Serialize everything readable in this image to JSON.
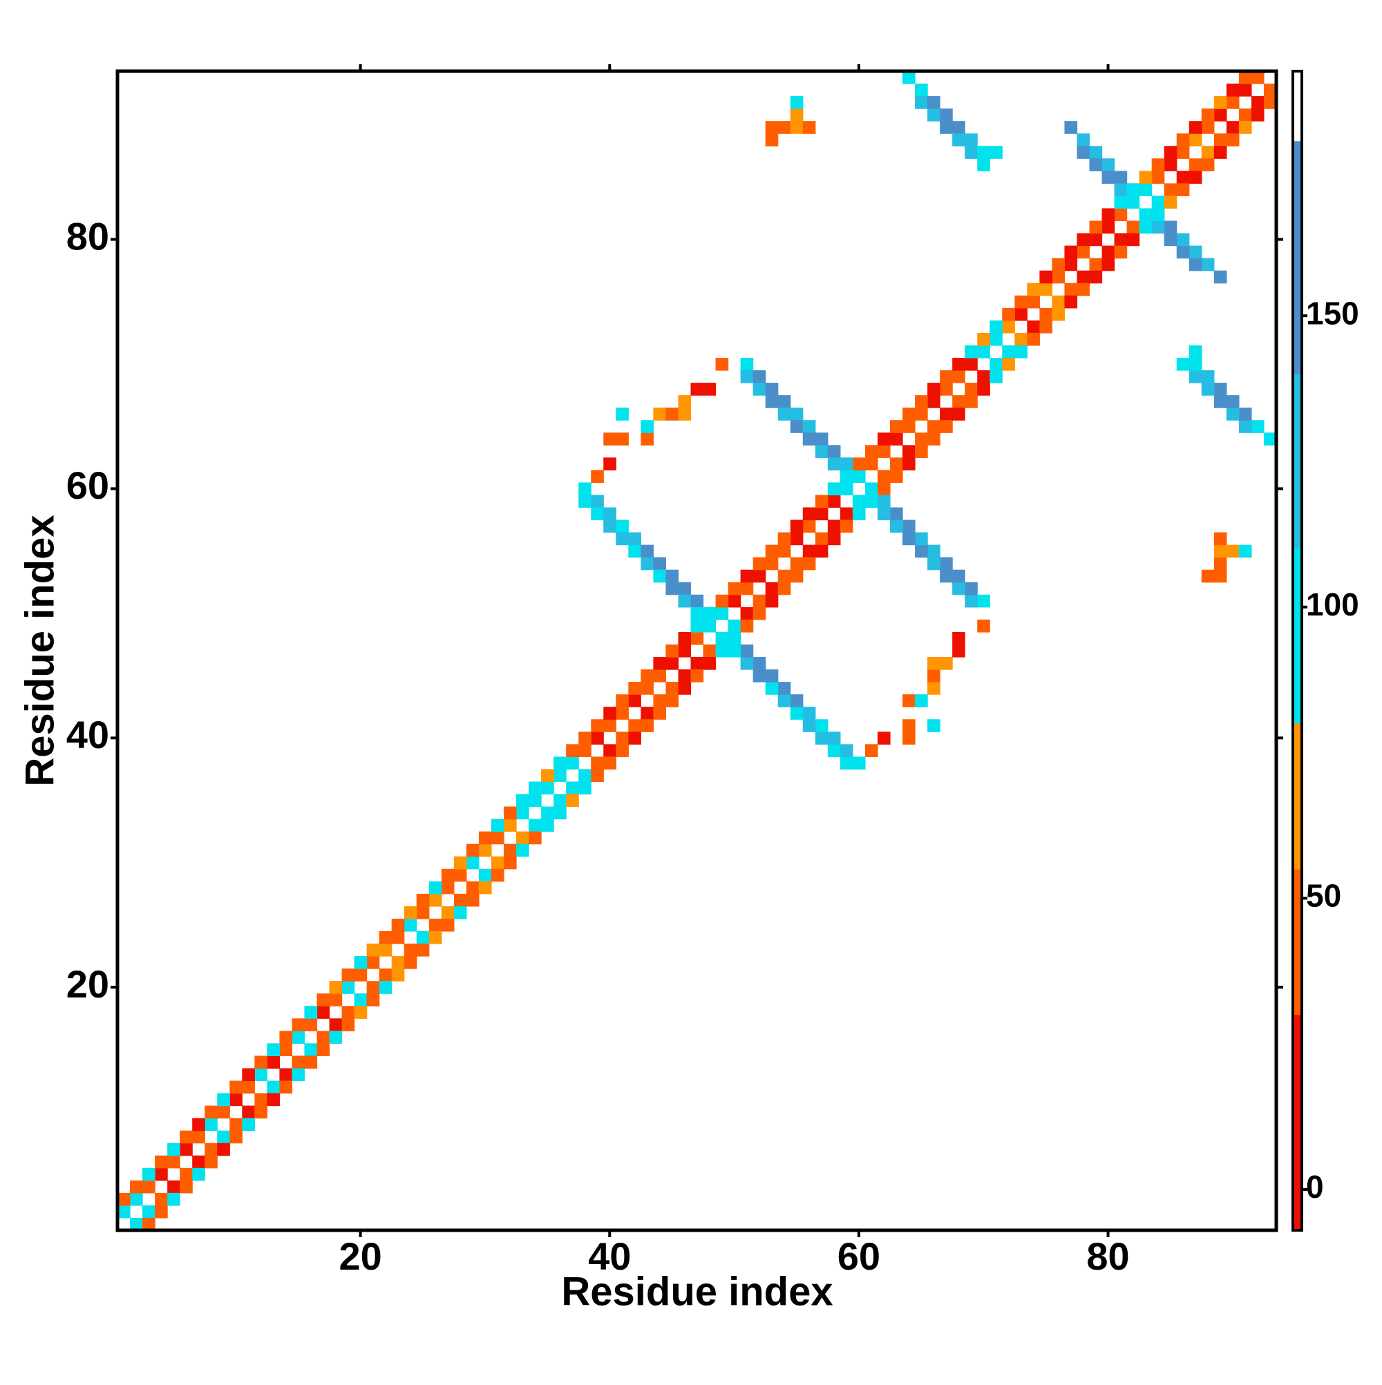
{
  "chart_data": {
    "type": "heatmap",
    "xlabel": "Residue index",
    "ylabel": "Residue index",
    "xlim": [
      0.5,
      93.5
    ],
    "ylim": [
      0.5,
      93.5
    ],
    "xticks": [
      20,
      40,
      60,
      80
    ],
    "yticks": [
      20,
      40,
      60,
      80
    ],
    "symmetric": true,
    "colorbar": {
      "lim": [
        -7,
        192
      ],
      "ticks": [
        0,
        50,
        100,
        150
      ],
      "bins": [
        [
          -7,
          30,
          "#ee1100"
        ],
        [
          30,
          55,
          "#ff5e00"
        ],
        [
          55,
          80,
          "#ff9500"
        ],
        [
          80,
          110,
          "#00e2ee"
        ],
        [
          110,
          140,
          "#26bde2"
        ],
        [
          140,
          180,
          "#4a8fc9"
        ],
        [
          180,
          192,
          "#ffffff"
        ]
      ]
    },
    "cells": [
      [
        1,
        2,
        92
      ],
      [
        2,
        3,
        92
      ],
      [
        3,
        4,
        40
      ],
      [
        4,
        5,
        10
      ],
      [
        5,
        6,
        40
      ],
      [
        6,
        7,
        10
      ],
      [
        7,
        8,
        40
      ],
      [
        8,
        9,
        92
      ],
      [
        9,
        10,
        40
      ],
      [
        10,
        11,
        10
      ],
      [
        11,
        12,
        40
      ],
      [
        12,
        13,
        92
      ],
      [
        13,
        14,
        10
      ],
      [
        14,
        15,
        40
      ],
      [
        15,
        16,
        92
      ],
      [
        16,
        17,
        40
      ],
      [
        17,
        18,
        10
      ],
      [
        18,
        19,
        40
      ],
      [
        19,
        20,
        92
      ],
      [
        20,
        21,
        40
      ],
      [
        21,
        22,
        40
      ],
      [
        22,
        23,
        65
      ],
      [
        23,
        24,
        40
      ],
      [
        24,
        25,
        92
      ],
      [
        25,
        26,
        40
      ],
      [
        26,
        27,
        65
      ],
      [
        27,
        28,
        40
      ],
      [
        28,
        29,
        40
      ],
      [
        29,
        30,
        92
      ],
      [
        30,
        31,
        65
      ],
      [
        31,
        32,
        40
      ],
      [
        32,
        33,
        65
      ],
      [
        33,
        34,
        92
      ],
      [
        34,
        35,
        92
      ],
      [
        35,
        36,
        92
      ],
      [
        36,
        37,
        92
      ],
      [
        37,
        38,
        92
      ],
      [
        38,
        39,
        40
      ],
      [
        39,
        40,
        10
      ],
      [
        40,
        41,
        40
      ],
      [
        41,
        42,
        40
      ],
      [
        42,
        43,
        10
      ],
      [
        43,
        44,
        40
      ],
      [
        44,
        45,
        40
      ],
      [
        45,
        46,
        10
      ],
      [
        46,
        47,
        10
      ],
      [
        47,
        48,
        40
      ],
      [
        48,
        49,
        92
      ],
      [
        49,
        50,
        92
      ],
      [
        50,
        51,
        10
      ],
      [
        51,
        52,
        40
      ],
      [
        52,
        53,
        10
      ],
      [
        53,
        54,
        40
      ],
      [
        54,
        55,
        40
      ],
      [
        55,
        56,
        10
      ],
      [
        56,
        57,
        40
      ],
      [
        57,
        58,
        10
      ],
      [
        58,
        59,
        10
      ],
      [
        59,
        60,
        92
      ],
      [
        60,
        61,
        92
      ],
      [
        61,
        62,
        40
      ],
      [
        62,
        63,
        40
      ],
      [
        63,
        64,
        10
      ],
      [
        64,
        65,
        40
      ],
      [
        65,
        66,
        40
      ],
      [
        66,
        67,
        10
      ],
      [
        67,
        68,
        40
      ],
      [
        68,
        69,
        40
      ],
      [
        69,
        70,
        10
      ],
      [
        70,
        71,
        92
      ],
      [
        71,
        72,
        92
      ],
      [
        72,
        73,
        65
      ],
      [
        73,
        74,
        10
      ],
      [
        74,
        75,
        40
      ],
      [
        75,
        76,
        65
      ],
      [
        76,
        77,
        40
      ],
      [
        77,
        78,
        10
      ],
      [
        78,
        79,
        40
      ],
      [
        79,
        80,
        10
      ],
      [
        80,
        81,
        10
      ],
      [
        81,
        82,
        40
      ],
      [
        82,
        83,
        92
      ],
      [
        83,
        84,
        92
      ],
      [
        84,
        85,
        40
      ],
      [
        85,
        86,
        10
      ],
      [
        86,
        87,
        40
      ],
      [
        87,
        88,
        65
      ],
      [
        88,
        89,
        40
      ],
      [
        89,
        90,
        10
      ],
      [
        90,
        91,
        40
      ],
      [
        91,
        92,
        10
      ],
      [
        92,
        93,
        40
      ],
      [
        1,
        3,
        40
      ],
      [
        2,
        4,
        40
      ],
      [
        3,
        5,
        92
      ],
      [
        4,
        6,
        40
      ],
      [
        5,
        7,
        92
      ],
      [
        6,
        8,
        40
      ],
      [
        7,
        9,
        10
      ],
      [
        8,
        10,
        40
      ],
      [
        9,
        11,
        92
      ],
      [
        10,
        12,
        40
      ],
      [
        11,
        13,
        10
      ],
      [
        12,
        14,
        40
      ],
      [
        13,
        15,
        92
      ],
      [
        14,
        16,
        40
      ],
      [
        15,
        17,
        40
      ],
      [
        16,
        18,
        92
      ],
      [
        17,
        19,
        40
      ],
      [
        18,
        20,
        65
      ],
      [
        19,
        21,
        40
      ],
      [
        20,
        22,
        92
      ],
      [
        21,
        23,
        65
      ],
      [
        22,
        24,
        40
      ],
      [
        23,
        25,
        40
      ],
      [
        24,
        26,
        65
      ],
      [
        25,
        27,
        40
      ],
      [
        26,
        28,
        92
      ],
      [
        27,
        29,
        40
      ],
      [
        28,
        30,
        65
      ],
      [
        29,
        31,
        40
      ],
      [
        30,
        32,
        40
      ],
      [
        31,
        33,
        92
      ],
      [
        32,
        34,
        40
      ],
      [
        33,
        35,
        92
      ],
      [
        34,
        36,
        92
      ],
      [
        35,
        37,
        65
      ],
      [
        36,
        38,
        92
      ],
      [
        37,
        39,
        40
      ],
      [
        38,
        40,
        40
      ],
      [
        39,
        41,
        40
      ],
      [
        40,
        42,
        10
      ],
      [
        41,
        43,
        40
      ],
      [
        42,
        44,
        40
      ],
      [
        43,
        45,
        40
      ],
      [
        44,
        46,
        10
      ],
      [
        45,
        47,
        40
      ],
      [
        46,
        48,
        10
      ],
      [
        47,
        49,
        92
      ],
      [
        48,
        50,
        10
      ],
      [
        49,
        51,
        40
      ],
      [
        50,
        52,
        40
      ],
      [
        51,
        53,
        10
      ],
      [
        52,
        54,
        40
      ],
      [
        53,
        55,
        40
      ],
      [
        54,
        56,
        40
      ],
      [
        55,
        57,
        10
      ],
      [
        56,
        58,
        10
      ],
      [
        57,
        59,
        40
      ],
      [
        58,
        60,
        92
      ],
      [
        59,
        61,
        92
      ],
      [
        60,
        62,
        40
      ],
      [
        61,
        63,
        40
      ],
      [
        62,
        64,
        10
      ],
      [
        63,
        65,
        40
      ],
      [
        64,
        66,
        40
      ],
      [
        65,
        67,
        40
      ],
      [
        66,
        68,
        10
      ],
      [
        67,
        69,
        40
      ],
      [
        68,
        70,
        10
      ],
      [
        69,
        71,
        92
      ],
      [
        70,
        72,
        65
      ],
      [
        71,
        73,
        92
      ],
      [
        72,
        74,
        40
      ],
      [
        73,
        75,
        40
      ],
      [
        74,
        76,
        65
      ],
      [
        75,
        77,
        10
      ],
      [
        76,
        78,
        40
      ],
      [
        77,
        79,
        10
      ],
      [
        78,
        80,
        10
      ],
      [
        79,
        81,
        40
      ],
      [
        80,
        82,
        10
      ],
      [
        81,
        83,
        92
      ],
      [
        82,
        84,
        40
      ],
      [
        83,
        85,
        65
      ],
      [
        84,
        86,
        40
      ],
      [
        85,
        87,
        10
      ],
      [
        86,
        88,
        40
      ],
      [
        87,
        89,
        10
      ],
      [
        88,
        90,
        40
      ],
      [
        89,
        91,
        65
      ],
      [
        90,
        92,
        10
      ],
      [
        91,
        93,
        40
      ],
      [
        38,
        60,
        92
      ],
      [
        38,
        59,
        92
      ],
      [
        39,
        59,
        125
      ],
      [
        39,
        58,
        92
      ],
      [
        40,
        58,
        125
      ],
      [
        40,
        57,
        125
      ],
      [
        41,
        57,
        92
      ],
      [
        41,
        56,
        125
      ],
      [
        42,
        56,
        125
      ],
      [
        42,
        55,
        92
      ],
      [
        43,
        55,
        160
      ],
      [
        43,
        54,
        125
      ],
      [
        44,
        54,
        160
      ],
      [
        44,
        53,
        92
      ],
      [
        45,
        53,
        160
      ],
      [
        45,
        52,
        160
      ],
      [
        46,
        52,
        160
      ],
      [
        46,
        51,
        125
      ],
      [
        47,
        51,
        160
      ],
      [
        47,
        50,
        92
      ],
      [
        48,
        50,
        92
      ],
      [
        51,
        70,
        92
      ],
      [
        51,
        69,
        125
      ],
      [
        52,
        69,
        160
      ],
      [
        52,
        68,
        125
      ],
      [
        53,
        68,
        160
      ],
      [
        53,
        67,
        160
      ],
      [
        54,
        67,
        160
      ],
      [
        54,
        66,
        125
      ],
      [
        55,
        66,
        125
      ],
      [
        55,
        65,
        160
      ],
      [
        56,
        65,
        125
      ],
      [
        56,
        64,
        160
      ],
      [
        57,
        64,
        160
      ],
      [
        57,
        63,
        125
      ],
      [
        58,
        63,
        160
      ],
      [
        58,
        62,
        125
      ],
      [
        59,
        62,
        125
      ],
      [
        59,
        61,
        92
      ],
      [
        77,
        89,
        160
      ],
      [
        78,
        88,
        125
      ],
      [
        78,
        87,
        160
      ],
      [
        79,
        87,
        125
      ],
      [
        79,
        86,
        160
      ],
      [
        80,
        86,
        125
      ],
      [
        80,
        85,
        160
      ],
      [
        81,
        85,
        160
      ],
      [
        81,
        84,
        125
      ],
      [
        82,
        84,
        92
      ],
      [
        64,
        93,
        92
      ],
      [
        65,
        92,
        92
      ],
      [
        65,
        91,
        125
      ],
      [
        66,
        91,
        160
      ],
      [
        66,
        90,
        125
      ],
      [
        67,
        90,
        160
      ],
      [
        67,
        89,
        160
      ],
      [
        68,
        89,
        160
      ],
      [
        68,
        88,
        125
      ],
      [
        69,
        88,
        125
      ],
      [
        69,
        87,
        125
      ],
      [
        70,
        87,
        92
      ],
      [
        70,
        86,
        92
      ],
      [
        71,
        87,
        92
      ],
      [
        53,
        88,
        40
      ],
      [
        53,
        89,
        40
      ],
      [
        54,
        89,
        40
      ],
      [
        55,
        89,
        65
      ],
      [
        56,
        89,
        40
      ],
      [
        55,
        90,
        65
      ],
      [
        55,
        91,
        92
      ],
      [
        40,
        64,
        40
      ],
      [
        41,
        64,
        40
      ],
      [
        43,
        64,
        40
      ],
      [
        41,
        66,
        92
      ],
      [
        43,
        65,
        92
      ],
      [
        44,
        66,
        65
      ],
      [
        45,
        66,
        40
      ],
      [
        46,
        66,
        65
      ],
      [
        46,
        67,
        65
      ],
      [
        47,
        68,
        10
      ],
      [
        48,
        68,
        10
      ],
      [
        39,
        61,
        40
      ],
      [
        40,
        62,
        10
      ],
      [
        49,
        70,
        40
      ]
    ]
  }
}
